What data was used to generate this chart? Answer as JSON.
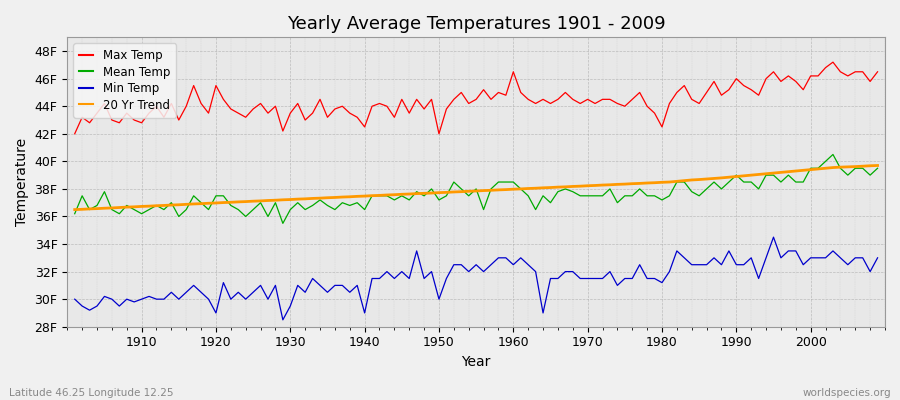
{
  "title": "Yearly Average Temperatures 1901 - 2009",
  "xlabel": "Year",
  "ylabel": "Temperature",
  "bottom_left": "Latitude 46.25 Longitude 12.25",
  "bottom_right": "worldspecies.org",
  "fig_bg_color": "#f0f0f0",
  "plot_bg_color": "#e8e8e8",
  "ylim": [
    28,
    49
  ],
  "yticks": [
    28,
    30,
    32,
    34,
    36,
    38,
    40,
    42,
    44,
    46,
    48
  ],
  "ytick_labels": [
    "28F",
    "30F",
    "32F",
    "34F",
    "36F",
    "38F",
    "40F",
    "42F",
    "44F",
    "46F",
    "48F"
  ],
  "xlim": [
    1900,
    2010
  ],
  "xticks": [
    1910,
    1920,
    1930,
    1940,
    1950,
    1960,
    1970,
    1980,
    1990,
    2000
  ],
  "max_color": "#ff0000",
  "mean_color": "#00aa00",
  "min_color": "#0000cc",
  "trend_color": "#ff9900",
  "years": [
    1901,
    1902,
    1903,
    1904,
    1905,
    1906,
    1907,
    1908,
    1909,
    1910,
    1911,
    1912,
    1913,
    1914,
    1915,
    1916,
    1917,
    1918,
    1919,
    1920,
    1921,
    1922,
    1923,
    1924,
    1925,
    1926,
    1927,
    1928,
    1929,
    1930,
    1931,
    1932,
    1933,
    1934,
    1935,
    1936,
    1937,
    1938,
    1939,
    1940,
    1941,
    1942,
    1943,
    1944,
    1945,
    1946,
    1947,
    1948,
    1949,
    1950,
    1951,
    1952,
    1953,
    1954,
    1955,
    1956,
    1957,
    1958,
    1959,
    1960,
    1961,
    1962,
    1963,
    1964,
    1965,
    1966,
    1967,
    1968,
    1969,
    1970,
    1971,
    1972,
    1973,
    1974,
    1975,
    1976,
    1977,
    1978,
    1979,
    1980,
    1981,
    1982,
    1983,
    1984,
    1985,
    1986,
    1987,
    1988,
    1989,
    1990,
    1991,
    1992,
    1993,
    1994,
    1995,
    1996,
    1997,
    1998,
    1999,
    2000,
    2001,
    2002,
    2003,
    2004,
    2005,
    2006,
    2007,
    2008,
    2009
  ],
  "max_temp": [
    42.0,
    43.2,
    42.8,
    43.5,
    44.2,
    43.0,
    42.8,
    43.5,
    43.0,
    42.8,
    43.5,
    44.0,
    43.2,
    44.2,
    43.0,
    44.0,
    45.5,
    44.2,
    43.5,
    45.5,
    44.5,
    43.8,
    43.5,
    43.2,
    43.8,
    44.2,
    43.5,
    44.0,
    42.2,
    43.5,
    44.2,
    43.0,
    43.5,
    44.5,
    43.2,
    43.8,
    44.0,
    43.5,
    43.2,
    42.5,
    44.0,
    44.2,
    44.0,
    43.2,
    44.5,
    43.5,
    44.5,
    43.8,
    44.5,
    42.0,
    43.8,
    44.5,
    45.0,
    44.2,
    44.5,
    45.2,
    44.5,
    45.0,
    44.8,
    46.5,
    45.0,
    44.5,
    44.2,
    44.5,
    44.2,
    44.5,
    45.0,
    44.5,
    44.2,
    44.5,
    44.2,
    44.5,
    44.5,
    44.2,
    44.0,
    44.5,
    45.0,
    44.0,
    43.5,
    42.5,
    44.2,
    45.0,
    45.5,
    44.5,
    44.2,
    45.0,
    45.8,
    44.8,
    45.2,
    46.0,
    45.5,
    45.2,
    44.8,
    46.0,
    46.5,
    45.8,
    46.2,
    45.8,
    45.2,
    46.2,
    46.2,
    46.8,
    47.2,
    46.5,
    46.2,
    46.5,
    46.5,
    45.8,
    46.5
  ],
  "mean_temp": [
    36.2,
    37.5,
    36.5,
    36.8,
    37.8,
    36.5,
    36.2,
    36.8,
    36.5,
    36.2,
    36.5,
    36.8,
    36.5,
    37.0,
    36.0,
    36.5,
    37.5,
    37.0,
    36.5,
    37.5,
    37.5,
    36.8,
    36.5,
    36.0,
    36.5,
    37.0,
    36.0,
    37.0,
    35.5,
    36.5,
    37.0,
    36.5,
    36.8,
    37.2,
    36.8,
    36.5,
    37.0,
    36.8,
    37.0,
    36.5,
    37.5,
    37.5,
    37.5,
    37.2,
    37.5,
    37.2,
    37.8,
    37.5,
    38.0,
    37.2,
    37.5,
    38.5,
    38.0,
    37.5,
    38.0,
    36.5,
    38.0,
    38.5,
    38.5,
    38.5,
    38.0,
    37.5,
    36.5,
    37.5,
    37.0,
    37.8,
    38.0,
    37.8,
    37.5,
    37.5,
    37.5,
    37.5,
    38.0,
    37.0,
    37.5,
    37.5,
    38.0,
    37.5,
    37.5,
    37.2,
    37.5,
    38.5,
    38.5,
    37.8,
    37.5,
    38.0,
    38.5,
    38.0,
    38.5,
    39.0,
    38.5,
    38.5,
    38.0,
    39.0,
    39.0,
    38.5,
    39.0,
    38.5,
    38.5,
    39.5,
    39.5,
    40.0,
    40.5,
    39.5,
    39.0,
    39.5,
    39.5,
    39.0,
    39.5
  ],
  "min_temp": [
    30.0,
    29.5,
    29.2,
    29.5,
    30.2,
    30.0,
    29.5,
    30.0,
    29.8,
    30.0,
    30.2,
    30.0,
    30.0,
    30.5,
    30.0,
    30.5,
    31.0,
    30.5,
    30.0,
    29.0,
    31.2,
    30.0,
    30.5,
    30.0,
    30.5,
    31.0,
    30.0,
    31.0,
    28.5,
    29.5,
    31.0,
    30.5,
    31.5,
    31.0,
    30.5,
    31.0,
    31.0,
    30.5,
    31.0,
    29.0,
    31.5,
    31.5,
    32.0,
    31.5,
    32.0,
    31.5,
    33.5,
    31.5,
    32.0,
    30.0,
    31.5,
    32.5,
    32.5,
    32.0,
    32.5,
    32.0,
    32.5,
    33.0,
    33.0,
    32.5,
    33.0,
    32.5,
    32.0,
    29.0,
    31.5,
    31.5,
    32.0,
    32.0,
    31.5,
    31.5,
    31.5,
    31.5,
    32.0,
    31.0,
    31.5,
    31.5,
    32.5,
    31.5,
    31.5,
    31.2,
    32.0,
    33.5,
    33.0,
    32.5,
    32.5,
    32.5,
    33.0,
    32.5,
    33.5,
    32.5,
    32.5,
    33.0,
    31.5,
    33.0,
    34.5,
    33.0,
    33.5,
    33.5,
    32.5,
    33.0,
    33.0,
    33.0,
    33.5,
    33.0,
    32.5,
    33.0,
    33.0,
    32.0,
    33.0
  ],
  "trend_years": [
    1901,
    1902,
    1903,
    1904,
    1905,
    1906,
    1907,
    1908,
    1909,
    1910,
    1911,
    1912,
    1913,
    1914,
    1915,
    1916,
    1917,
    1918,
    1919,
    1920,
    1921,
    1922,
    1923,
    1924,
    1925,
    1926,
    1927,
    1928,
    1929,
    1930,
    1931,
    1932,
    1933,
    1934,
    1935,
    1936,
    1937,
    1938,
    1939,
    1940,
    1941,
    1942,
    1943,
    1944,
    1945,
    1946,
    1947,
    1948,
    1949,
    1950,
    1951,
    1952,
    1953,
    1954,
    1955,
    1956,
    1957,
    1958,
    1959,
    1960,
    1961,
    1962,
    1963,
    1964,
    1965,
    1966,
    1967,
    1968,
    1969,
    1970,
    1971,
    1972,
    1973,
    1974,
    1975,
    1976,
    1977,
    1978,
    1979,
    1980,
    1981,
    1982,
    1983,
    1984,
    1985,
    1986,
    1987,
    1988,
    1989,
    1990,
    1991,
    1992,
    1993,
    1994,
    1995,
    1996,
    1997,
    1998,
    1999,
    2000,
    2001,
    2002,
    2003,
    2004,
    2005,
    2006,
    2007,
    2008,
    2009
  ],
  "trend_vals": [
    36.5,
    36.52,
    36.55,
    36.57,
    36.6,
    36.62,
    36.65,
    36.68,
    36.7,
    36.73,
    36.75,
    36.78,
    36.8,
    36.83,
    36.85,
    36.88,
    36.91,
    36.93,
    36.96,
    36.98,
    37.01,
    37.03,
    37.06,
    37.08,
    37.11,
    37.13,
    37.16,
    37.18,
    37.21,
    37.23,
    37.26,
    37.28,
    37.31,
    37.33,
    37.36,
    37.38,
    37.41,
    37.43,
    37.46,
    37.48,
    37.51,
    37.53,
    37.56,
    37.58,
    37.61,
    37.63,
    37.66,
    37.68,
    37.7,
    37.73,
    37.75,
    37.78,
    37.8,
    37.83,
    37.85,
    37.88,
    37.9,
    37.93,
    37.95,
    37.98,
    38.0,
    38.03,
    38.05,
    38.08,
    38.1,
    38.13,
    38.15,
    38.18,
    38.2,
    38.23,
    38.25,
    38.28,
    38.3,
    38.33,
    38.35,
    38.38,
    38.4,
    38.43,
    38.45,
    38.48,
    38.5,
    38.55,
    38.6,
    38.65,
    38.68,
    38.72,
    38.76,
    38.8,
    38.85,
    38.9,
    38.95,
    39.0,
    39.05,
    39.1,
    39.15,
    39.2,
    39.25,
    39.3,
    39.35,
    39.4,
    39.45,
    39.5,
    39.55,
    39.58,
    39.6,
    39.62,
    39.65,
    39.68,
    39.7
  ]
}
